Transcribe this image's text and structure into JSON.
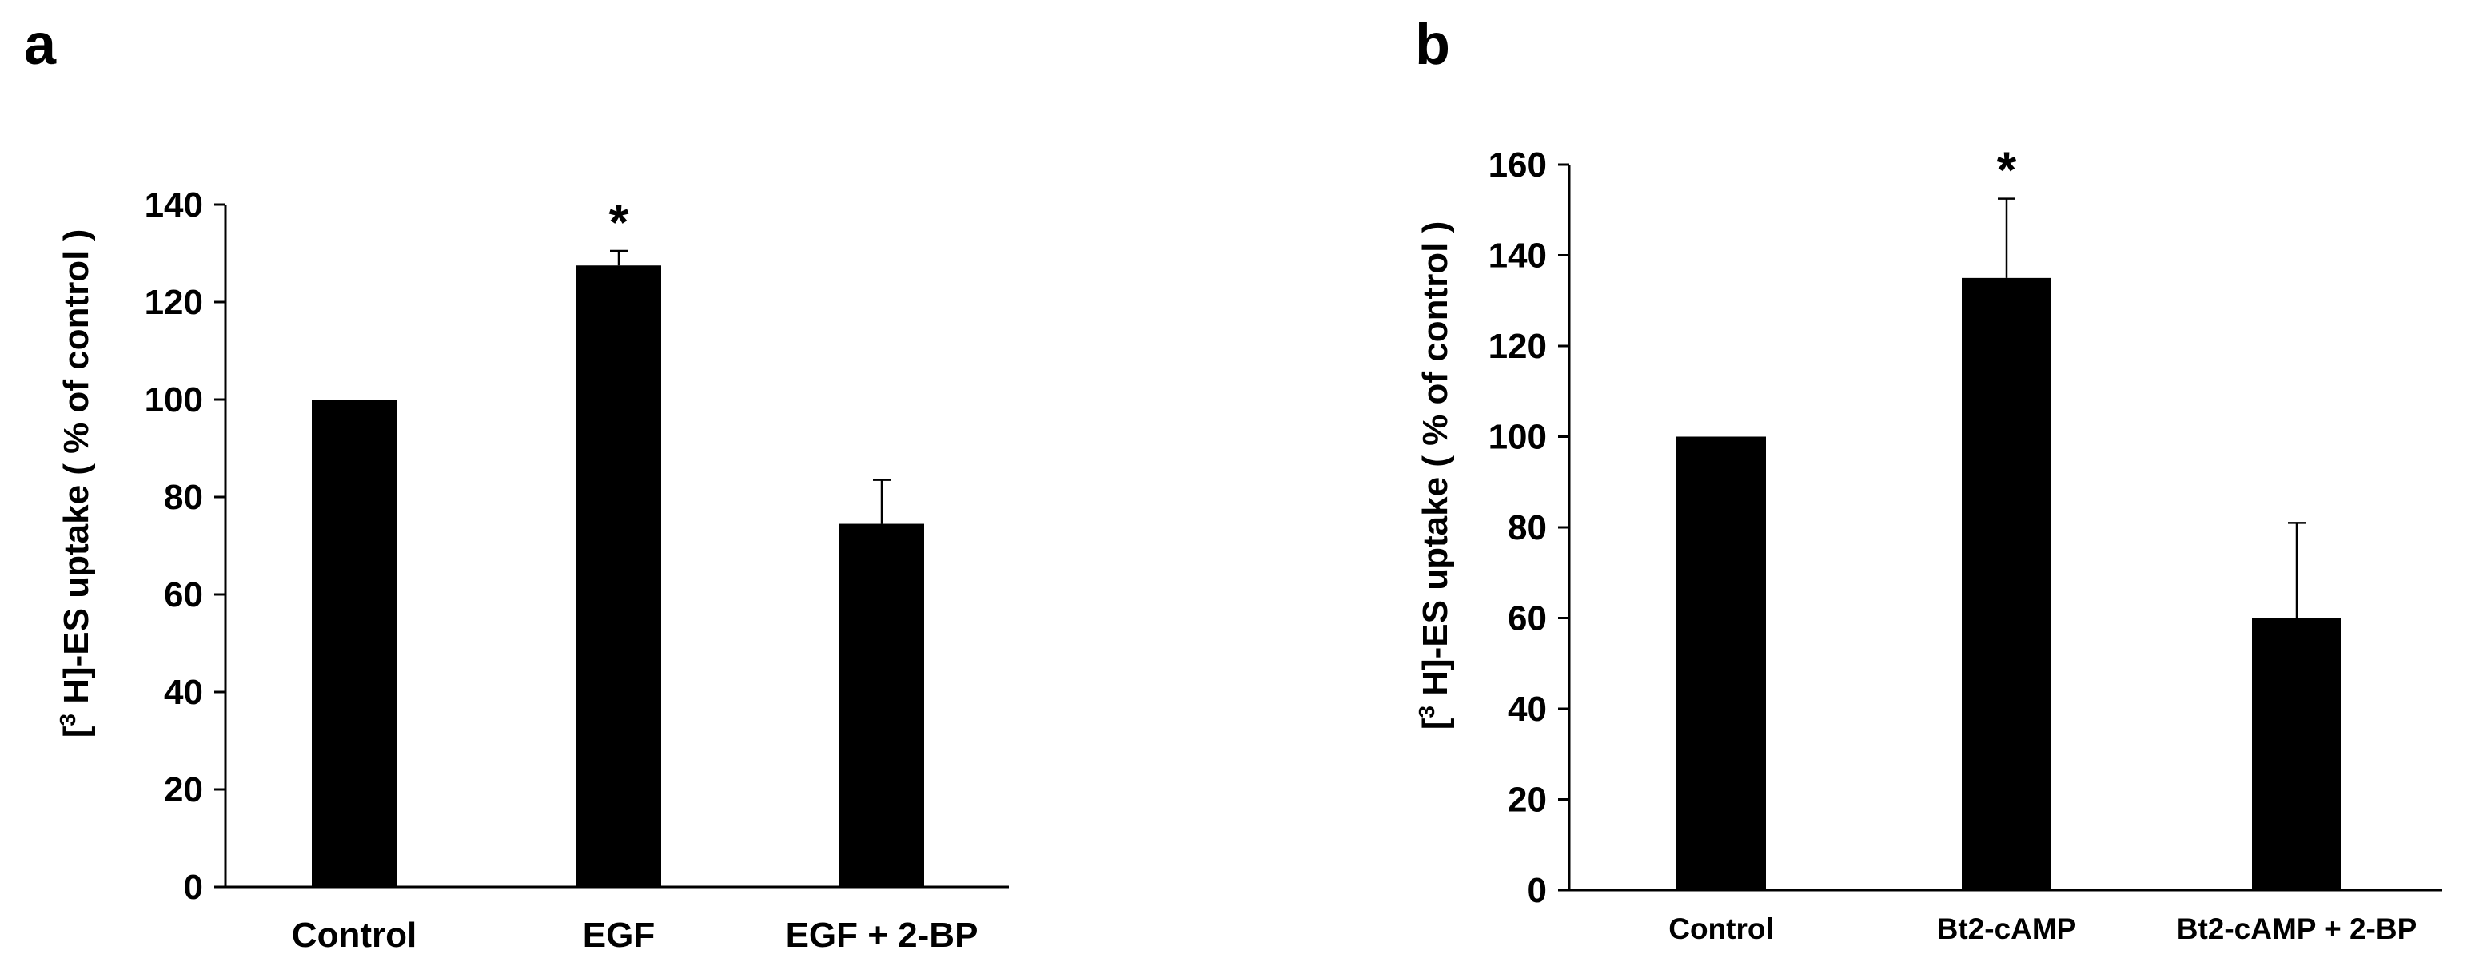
{
  "panels": [
    {
      "letter": "a",
      "ylabel_pre": "[",
      "ylabel_sup": "3",
      "ylabel_post": " H]-ES uptake ( % of control )"
    },
    {
      "letter": "b",
      "ylabel_pre": "[",
      "ylabel_sup": "3",
      "ylabel_post": " H]-ES uptake ( % of control )"
    }
  ],
  "colors": {
    "bar": "#000000",
    "axis": "#000000",
    "background": "#ffffff"
  },
  "chart_data": [
    {
      "type": "bar",
      "title": "",
      "xlabel": "",
      "ylabel": "[3 H]-ES uptake ( % of control )",
      "categories": [
        "Control",
        "EGF",
        "EGF + 2-BP"
      ],
      "values": [
        100,
        127.5,
        74.5
      ],
      "error_upper": [
        0,
        3,
        9
      ],
      "annotations": [
        "",
        "*",
        ""
      ],
      "ylim": [
        0,
        140
      ],
      "yticks": [
        0,
        20,
        40,
        60,
        80,
        100,
        120,
        140
      ],
      "grid": false,
      "legend": "none"
    },
    {
      "type": "bar",
      "title": "",
      "xlabel": "",
      "ylabel": "[3 H]-ES uptake ( % of control )",
      "categories": [
        "Control",
        "Bt2-cAMP",
        "Bt2-cAMP + 2-BP"
      ],
      "values": [
        100,
        135,
        60
      ],
      "error_upper": [
        0,
        17.5,
        21
      ],
      "annotations": [
        "",
        "*",
        ""
      ],
      "ylim": [
        0,
        160
      ],
      "yticks": [
        0,
        20,
        40,
        60,
        80,
        100,
        120,
        140,
        160
      ],
      "grid": false,
      "legend": "none"
    }
  ]
}
